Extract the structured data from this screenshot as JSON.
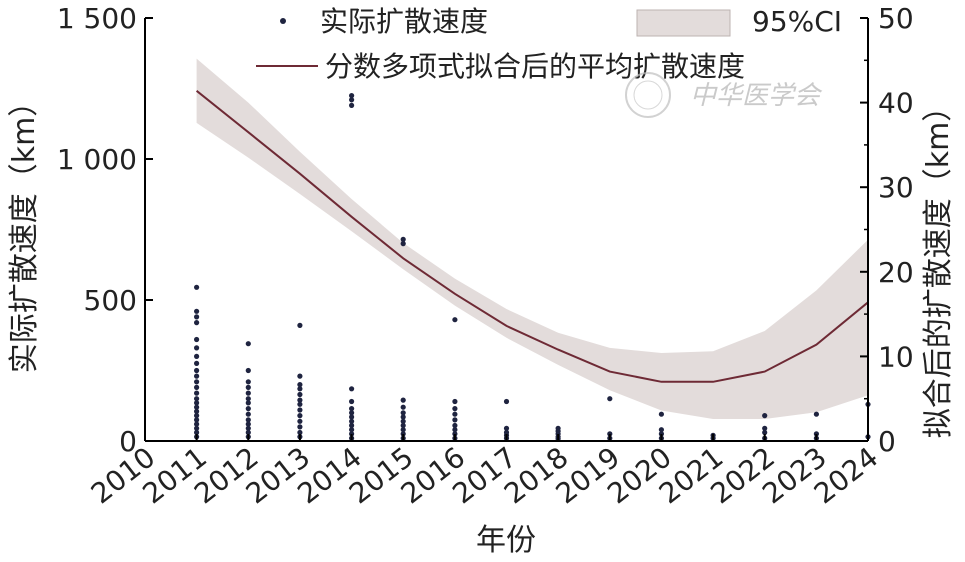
{
  "chart_data": {
    "type": "line",
    "xlabel": "年份",
    "ylabel_left": "实际扩散速度（km）",
    "ylabel_right": "拟合后的扩散速度（km）",
    "x_ticks": [
      "2010",
      "2011",
      "2012",
      "2013",
      "2014",
      "2015",
      "2016",
      "2017",
      "2018",
      "2019",
      "2020",
      "2021",
      "2022",
      "2023",
      "2024"
    ],
    "xlim": [
      2010,
      2024
    ],
    "y_left": {
      "ylim": [
        0,
        1400
      ],
      "ticks": [
        0,
        500,
        1000,
        1500
      ],
      "tick_labels": [
        "0",
        "500",
        "1 000",
        "1 500"
      ]
    },
    "y_right": {
      "ylim": [
        0,
        50
      ],
      "ticks": [
        0,
        10,
        20,
        30,
        40,
        50
      ],
      "tick_labels": [
        "0",
        "10",
        "20",
        "30",
        "40",
        "50"
      ]
    },
    "legend": {
      "placement": "top",
      "scatter_label": "实际扩散速度",
      "line_label": "分数多项式拟合后的平均扩散速度",
      "band_label": "95%CI"
    },
    "series": [
      {
        "name": "分数多项式拟合后的平均扩散速度",
        "axis": "right",
        "x": [
          2011,
          2012,
          2013,
          2014,
          2015,
          2016,
          2017,
          2018,
          2019,
          2020,
          2021,
          2022,
          2023,
          2024
        ],
        "values": [
          41.4,
          36.5,
          31.6,
          26.5,
          21.6,
          17.4,
          13.6,
          10.8,
          8.2,
          7.0,
          7.0,
          8.2,
          11.4,
          16.4
        ],
        "ci_lower": [
          37.6,
          33.5,
          29.2,
          24.8,
          20.3,
          16.0,
          12.2,
          9.0,
          6.0,
          3.6,
          2.6,
          2.6,
          3.4,
          5.4
        ],
        "ci_upper": [
          45.2,
          40.0,
          34.2,
          28.6,
          23.4,
          19.2,
          15.6,
          12.8,
          11.0,
          10.4,
          10.6,
          13.0,
          17.8,
          23.8
        ]
      },
      {
        "name": "实际扩散速度",
        "axis": "left",
        "type": "scatter",
        "points": [
          [
            2011,
            15
          ],
          [
            2011,
            30
          ],
          [
            2011,
            45
          ],
          [
            2011,
            60
          ],
          [
            2011,
            75
          ],
          [
            2011,
            90
          ],
          [
            2011,
            105
          ],
          [
            2011,
            120
          ],
          [
            2011,
            135
          ],
          [
            2011,
            150
          ],
          [
            2011,
            170
          ],
          [
            2011,
            190
          ],
          [
            2011,
            210
          ],
          [
            2011,
            230
          ],
          [
            2011,
            250
          ],
          [
            2011,
            275
          ],
          [
            2011,
            300
          ],
          [
            2011,
            330
          ],
          [
            2011,
            360
          ],
          [
            2011,
            420
          ],
          [
            2011,
            440
          ],
          [
            2011,
            460
          ],
          [
            2011,
            545
          ],
          [
            2012,
            15
          ],
          [
            2012,
            30
          ],
          [
            2012,
            45
          ],
          [
            2012,
            60
          ],
          [
            2012,
            75
          ],
          [
            2012,
            95
          ],
          [
            2012,
            115
          ],
          [
            2012,
            135
          ],
          [
            2012,
            150
          ],
          [
            2012,
            170
          ],
          [
            2012,
            190
          ],
          [
            2012,
            210
          ],
          [
            2012,
            250
          ],
          [
            2012,
            345
          ],
          [
            2013,
            15
          ],
          [
            2013,
            30
          ],
          [
            2013,
            50
          ],
          [
            2013,
            70
          ],
          [
            2013,
            90
          ],
          [
            2013,
            110
          ],
          [
            2013,
            130
          ],
          [
            2013,
            145
          ],
          [
            2013,
            165
          ],
          [
            2013,
            185
          ],
          [
            2013,
            200
          ],
          [
            2013,
            230
          ],
          [
            2013,
            410
          ],
          [
            2014,
            10
          ],
          [
            2014,
            25
          ],
          [
            2014,
            40
          ],
          [
            2014,
            55
          ],
          [
            2014,
            70
          ],
          [
            2014,
            85
          ],
          [
            2014,
            100
          ],
          [
            2014,
            115
          ],
          [
            2014,
            140
          ],
          [
            2014,
            185
          ],
          [
            2014,
            1210
          ],
          [
            2014,
            1225
          ],
          [
            2014,
            1190
          ],
          [
            2015,
            10
          ],
          [
            2015,
            25
          ],
          [
            2015,
            40
          ],
          [
            2015,
            55
          ],
          [
            2015,
            70
          ],
          [
            2015,
            85
          ],
          [
            2015,
            100
          ],
          [
            2015,
            120
          ],
          [
            2015,
            145
          ],
          [
            2015,
            700
          ],
          [
            2015,
            715
          ],
          [
            2016,
            10
          ],
          [
            2016,
            25
          ],
          [
            2016,
            40
          ],
          [
            2016,
            55
          ],
          [
            2016,
            75
          ],
          [
            2016,
            95
          ],
          [
            2016,
            115
          ],
          [
            2016,
            140
          ],
          [
            2016,
            430
          ],
          [
            2017,
            10
          ],
          [
            2017,
            20
          ],
          [
            2017,
            30
          ],
          [
            2017,
            45
          ],
          [
            2017,
            140
          ],
          [
            2018,
            8
          ],
          [
            2018,
            15
          ],
          [
            2018,
            25
          ],
          [
            2018,
            35
          ],
          [
            2018,
            45
          ],
          [
            2019,
            10
          ],
          [
            2019,
            25
          ],
          [
            2019,
            150
          ],
          [
            2020,
            10
          ],
          [
            2020,
            25
          ],
          [
            2020,
            40
          ],
          [
            2020,
            95
          ],
          [
            2021,
            10
          ],
          [
            2021,
            20
          ],
          [
            2022,
            10
          ],
          [
            2022,
            30
          ],
          [
            2022,
            45
          ],
          [
            2022,
            90
          ],
          [
            2023,
            10
          ],
          [
            2023,
            25
          ],
          [
            2023,
            95
          ],
          [
            2024,
            15
          ],
          [
            2024,
            130
          ]
        ]
      }
    ]
  },
  "watermark": {
    "text": "中华医学会"
  }
}
